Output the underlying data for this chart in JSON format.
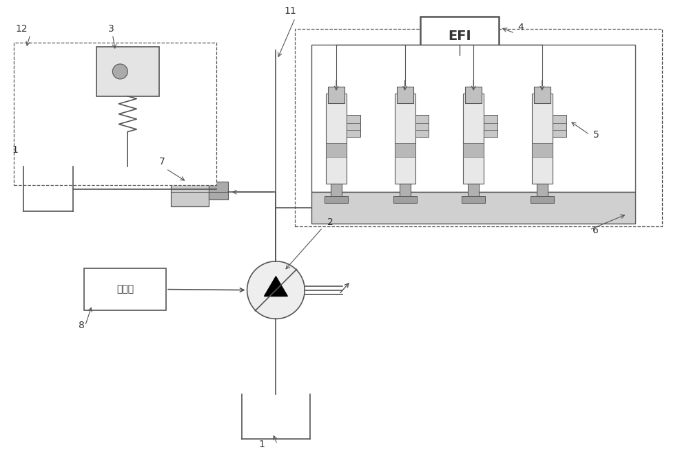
{
  "bg_color": "#ffffff",
  "line_color": "#555555",
  "label_color": "#333333",
  "controller_text": "控制器",
  "efi_text": "EFI"
}
